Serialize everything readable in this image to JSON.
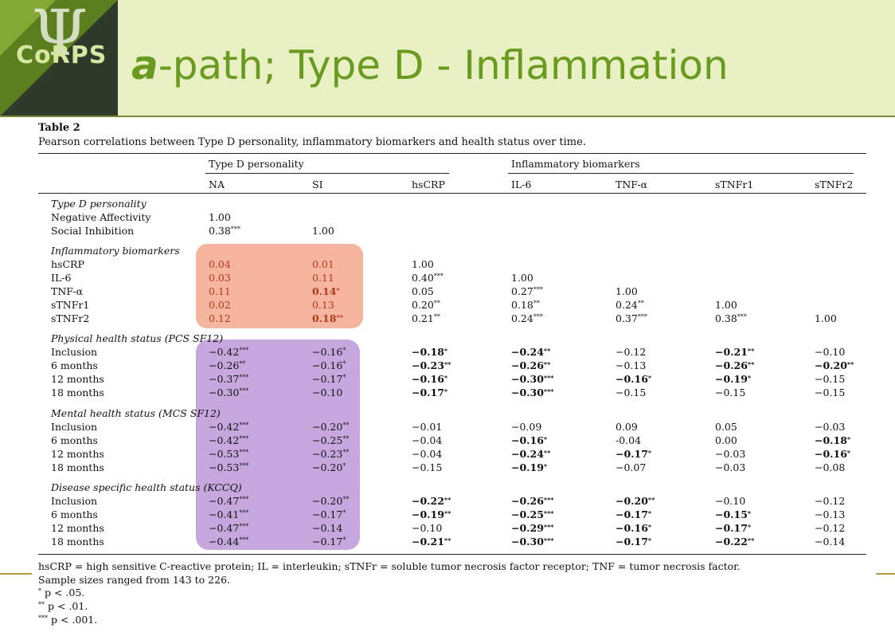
{
  "slide": {
    "logo_text": "CoRPS",
    "title_prefix": "a",
    "title_rest": "-path; Type D - Inflammation"
  },
  "table": {
    "label": "Table 2",
    "caption": "Pearson correlations between Type D personality, inflammatory biomarkers and health status over time.",
    "group_headers": [
      "Type D personality",
      "Inflammatory biomarkers"
    ],
    "columns": [
      "NA",
      "SI",
      "hsCRP",
      "IL-6",
      "TNF-α",
      "sTNFr1",
      "sTNFr2"
    ],
    "sections": [
      {
        "title": "Type D personality",
        "rows": [
          {
            "label": "Negative Affectivity",
            "cells": [
              {
                "v": "1.00"
              }
            ]
          },
          {
            "label": "Social Inhibition",
            "cells": [
              {
                "v": "0.38",
                "s": "***"
              },
              {
                "v": "1.00"
              }
            ]
          }
        ]
      },
      {
        "title": "Inflammatory biomarkers",
        "rows": [
          {
            "label": "hsCRP",
            "cells": [
              {
                "v": "0.04"
              },
              {
                "v": "0.01"
              },
              {
                "v": "1.00"
              }
            ]
          },
          {
            "label": "IL-6",
            "cells": [
              {
                "v": "0.03"
              },
              {
                "v": "0.11"
              },
              {
                "v": "0.40",
                "s": "***"
              },
              {
                "v": "1.00"
              }
            ]
          },
          {
            "label": "TNF-α",
            "cells": [
              {
                "v": "0.11"
              },
              {
                "v": "0.14",
                "s": "*",
                "b": true
              },
              {
                "v": "0.05"
              },
              {
                "v": "0.27",
                "s": "***"
              },
              {
                "v": "1.00"
              }
            ]
          },
          {
            "label": "sTNFr1",
            "cells": [
              {
                "v": "0.02"
              },
              {
                "v": "0.13"
              },
              {
                "v": "0.20",
                "s": "**"
              },
              {
                "v": "0.18",
                "s": "**"
              },
              {
                "v": "0.24",
                "s": "**"
              },
              {
                "v": "1.00"
              }
            ]
          },
          {
            "label": "sTNFr2",
            "cells": [
              {
                "v": "0.12"
              },
              {
                "v": "0.18",
                "s": "**",
                "b": true
              },
              {
                "v": "0.21",
                "s": "**"
              },
              {
                "v": "0.24",
                "s": "***"
              },
              {
                "v": "0.37",
                "s": "***"
              },
              {
                "v": "0.38",
                "s": "***"
              },
              {
                "v": "1.00"
              }
            ]
          }
        ]
      },
      {
        "title": "Physical health status (PCS SF12)",
        "rows": [
          {
            "label": "Inclusion",
            "cells": [
              {
                "v": "−0.42",
                "s": "***"
              },
              {
                "v": "−0.16",
                "s": "*"
              },
              {
                "v": "−0.18",
                "s": "*",
                "b": true
              },
              {
                "v": "−0.24",
                "s": "**",
                "b": true
              },
              {
                "v": "−0.12"
              },
              {
                "v": "−0.21",
                "s": "**",
                "b": true
              },
              {
                "v": "−0.10"
              }
            ]
          },
          {
            "label": "6 months",
            "cells": [
              {
                "v": "−0.26",
                "s": "**"
              },
              {
                "v": "−0.16",
                "s": "*"
              },
              {
                "v": "−0.23",
                "s": "**",
                "b": true
              },
              {
                "v": "−0.26",
                "s": "**",
                "b": true
              },
              {
                "v": "−0.13"
              },
              {
                "v": "−0.26",
                "s": "**",
                "b": true
              },
              {
                "v": "−0.20",
                "s": "**",
                "b": true
              }
            ]
          },
          {
            "label": "12 months",
            "cells": [
              {
                "v": "−0.37",
                "s": "***"
              },
              {
                "v": "−0.17",
                "s": "*"
              },
              {
                "v": "−0.16",
                "s": "*",
                "b": true
              },
              {
                "v": "−0.30",
                "s": "***",
                "b": true
              },
              {
                "v": "−0.16",
                "s": "*",
                "b": true
              },
              {
                "v": "−0.19",
                "s": "*",
                "b": true
              },
              {
                "v": "−0.15"
              }
            ]
          },
          {
            "label": "18 months",
            "cells": [
              {
                "v": "−0.30",
                "s": "***"
              },
              {
                "v": "−0.10"
              },
              {
                "v": "−0.17",
                "s": "*",
                "b": true
              },
              {
                "v": "−0.30",
                "s": "***",
                "b": true
              },
              {
                "v": "−0.15"
              },
              {
                "v": "−0.15"
              },
              {
                "v": "−0.15"
              }
            ]
          }
        ]
      },
      {
        "title": "Mental health status (MCS SF12)",
        "rows": [
          {
            "label": "Inclusion",
            "cells": [
              {
                "v": "−0.42",
                "s": "***"
              },
              {
                "v": "−0.20",
                "s": "**"
              },
              {
                "v": "−0.01"
              },
              {
                "v": "−0.09"
              },
              {
                "v": "0.09"
              },
              {
                "v": "0.05"
              },
              {
                "v": "−0.03"
              }
            ]
          },
          {
            "label": "6 months",
            "cells": [
              {
                "v": "−0.42",
                "s": "***"
              },
              {
                "v": "−0.25",
                "s": "**"
              },
              {
                "v": "−0.04"
              },
              {
                "v": "−0.16",
                "s": "*",
                "b": true
              },
              {
                "v": "-0.04"
              },
              {
                "v": "0.00"
              },
              {
                "v": "−0.18",
                "s": "*",
                "b": true
              }
            ]
          },
          {
            "label": "12 months",
            "cells": [
              {
                "v": "−0.53",
                "s": "***"
              },
              {
                "v": "−0.23",
                "s": "**"
              },
              {
                "v": "−0.04"
              },
              {
                "v": "−0.24",
                "s": "**",
                "b": true
              },
              {
                "v": "−0.17",
                "s": "*",
                "b": true
              },
              {
                "v": "−0.03"
              },
              {
                "v": "−0.16",
                "s": "*",
                "b": true
              }
            ]
          },
          {
            "label": "18 months",
            "cells": [
              {
                "v": "−0.53",
                "s": "***"
              },
              {
                "v": "−0.20",
                "s": "*"
              },
              {
                "v": "−0.15"
              },
              {
                "v": "−0.19",
                "s": "*",
                "b": true
              },
              {
                "v": "−0.07"
              },
              {
                "v": "−0.03"
              },
              {
                "v": "−0.08"
              }
            ]
          }
        ]
      },
      {
        "title": "Disease specific health status (KCCQ)",
        "rows": [
          {
            "label": "Inclusion",
            "cells": [
              {
                "v": "−0.47",
                "s": "***"
              },
              {
                "v": "−0.20",
                "s": "**"
              },
              {
                "v": "−0.22",
                "s": "**",
                "b": true
              },
              {
                "v": "−0.26",
                "s": "***",
                "b": true
              },
              {
                "v": "−0.20",
                "s": "**",
                "b": true
              },
              {
                "v": "−0.10"
              },
              {
                "v": "−0.12"
              }
            ]
          },
          {
            "label": "6 months",
            "cells": [
              {
                "v": "−0.41",
                "s": "***"
              },
              {
                "v": "−0.17",
                "s": "*"
              },
              {
                "v": "−0.19",
                "s": "**",
                "b": true
              },
              {
                "v": "−0.25",
                "s": "***",
                "b": true
              },
              {
                "v": "−0.17",
                "s": "*",
                "b": true
              },
              {
                "v": "−0.15",
                "s": "*",
                "b": true
              },
              {
                "v": "−0.13"
              }
            ]
          },
          {
            "label": "12 months",
            "cells": [
              {
                "v": "−0.47",
                "s": "***"
              },
              {
                "v": "−0.14"
              },
              {
                "v": "−0.10"
              },
              {
                "v": "−0.29",
                "s": "***",
                "b": true
              },
              {
                "v": "−0.16",
                "s": "*",
                "b": true
              },
              {
                "v": "−0.17",
                "s": "*",
                "b": true
              },
              {
                "v": "−0.12"
              }
            ]
          },
          {
            "label": "18 months",
            "cells": [
              {
                "v": "−0.44",
                "s": "***"
              },
              {
                "v": "−0.17",
                "s": "*"
              },
              {
                "v": "−0.21",
                "s": "**",
                "b": true
              },
              {
                "v": "−0.30",
                "s": "***",
                "b": true
              },
              {
                "v": "−0.17",
                "s": "*",
                "b": true
              },
              {
                "v": "−0.22",
                "s": "**",
                "b": true
              },
              {
                "v": "−0.14"
              }
            ]
          }
        ]
      }
    ],
    "footnotes": {
      "abbrev": "hsCRP = high sensitive C-reactive protein; IL = interleukin; sTNFr = soluble tumor necrosis factor receptor; TNF = tumor necrosis factor.",
      "sample": "Sample sizes ranged from 143 to 226.",
      "p1_mark": "*",
      "p1": "p < .05.",
      "p2_mark": "**",
      "p2": "p < .01.",
      "p3_mark": "***",
      "p3": "p < .001."
    }
  },
  "colors": {
    "title": "#6a9a1f",
    "header_bg": "#e8f0c4",
    "highlight_red": "#f6b59e",
    "highlight_purple": "#c7a8de",
    "red_text": "#b13a1c"
  }
}
